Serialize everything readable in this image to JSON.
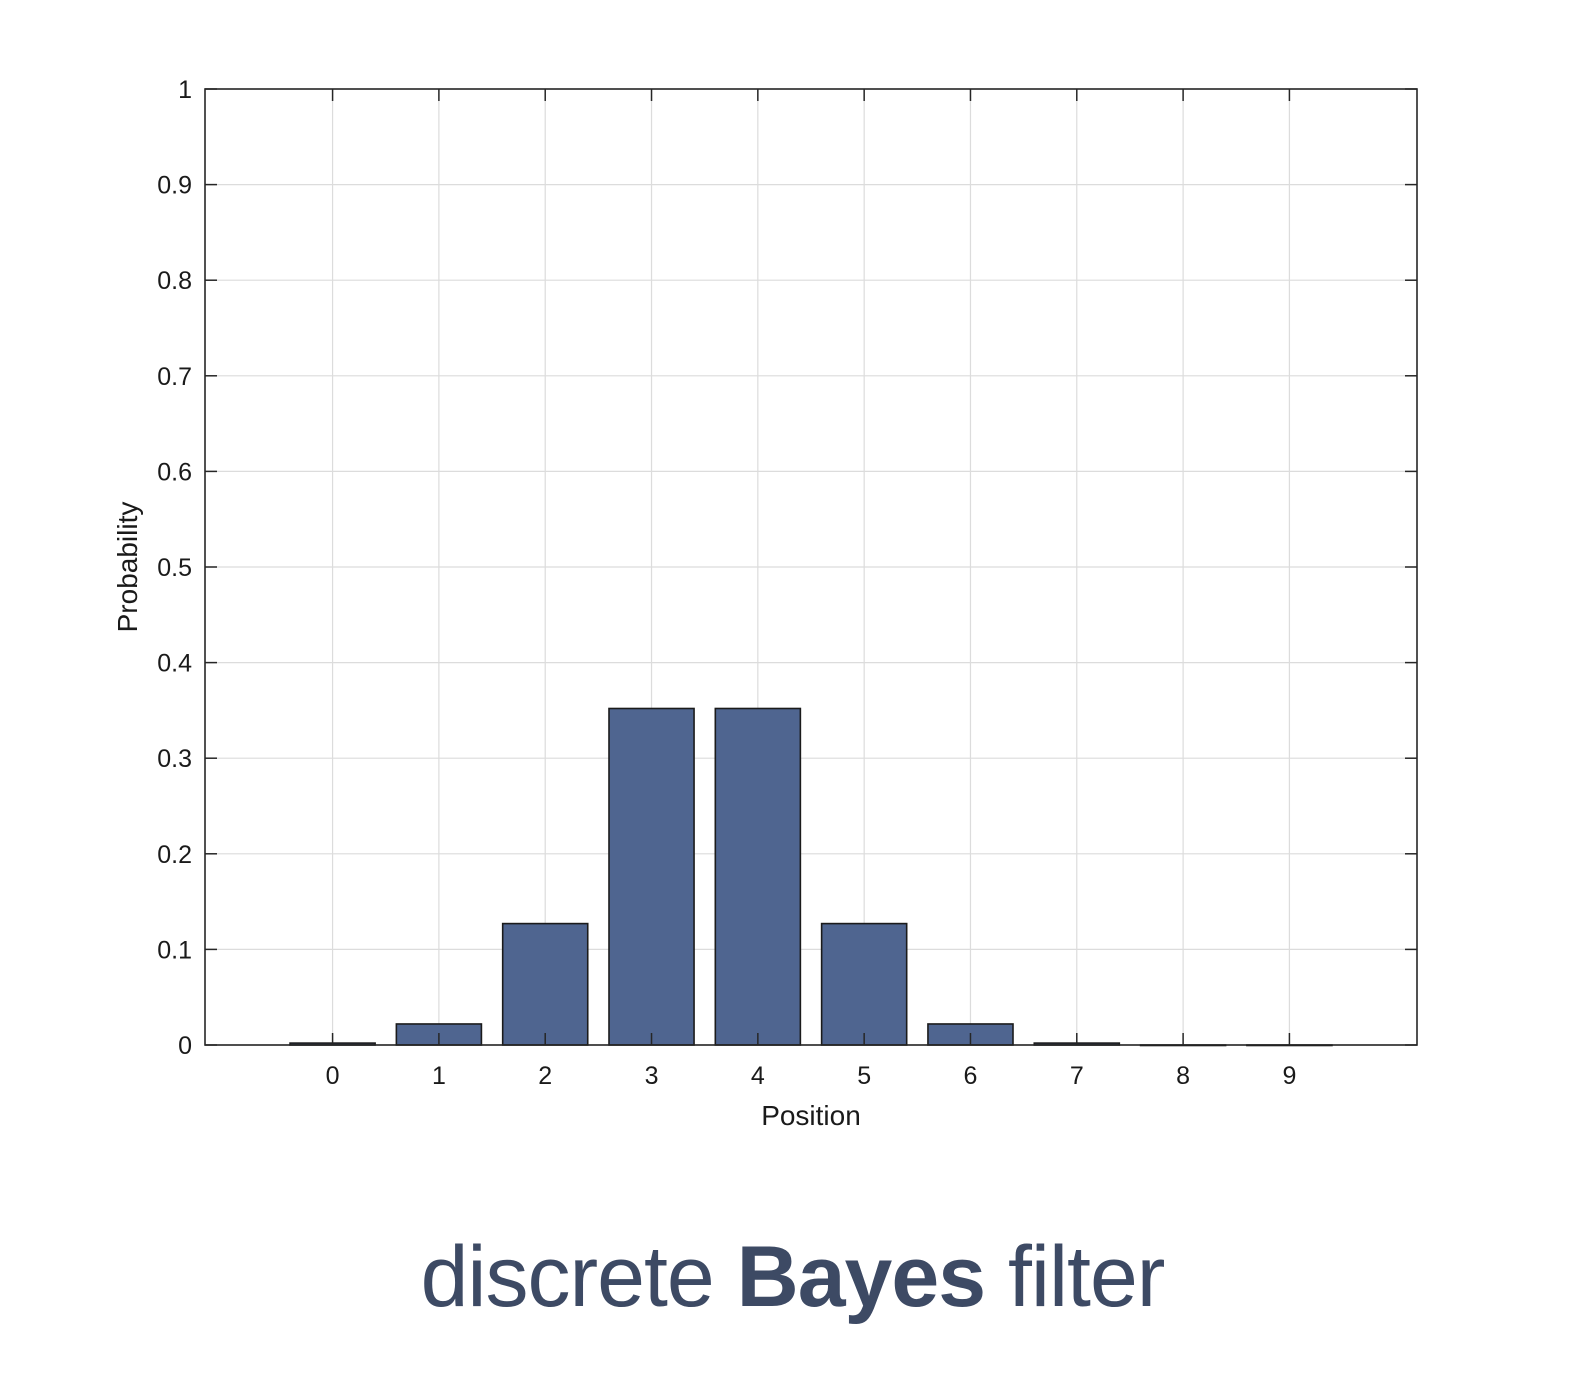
{
  "chart_data": {
    "type": "bar",
    "categories": [
      "0",
      "1",
      "2",
      "3",
      "4",
      "5",
      "6",
      "7",
      "8",
      "9"
    ],
    "values": [
      0.002,
      0.022,
      0.127,
      0.352,
      0.352,
      0.127,
      0.022,
      0.002,
      0.0,
      0.0
    ],
    "xlabel": "Position",
    "ylabel": "Probability",
    "ylim": [
      0,
      1
    ],
    "xlim": [
      -1.2,
      10.2
    ],
    "yticks": [
      "0",
      "0.1",
      "0.2",
      "0.3",
      "0.4",
      "0.5",
      "0.6",
      "0.7",
      "0.8",
      "0.9",
      "1"
    ],
    "grid": true,
    "colors": {
      "bar_fill": "#4f6590",
      "bar_edge": "#1b1b1b",
      "grid": "#dcdcdc",
      "axis": "#262626"
    }
  },
  "caption": {
    "part1": "discrete ",
    "part2": "Bayes",
    "part3": " filter"
  }
}
